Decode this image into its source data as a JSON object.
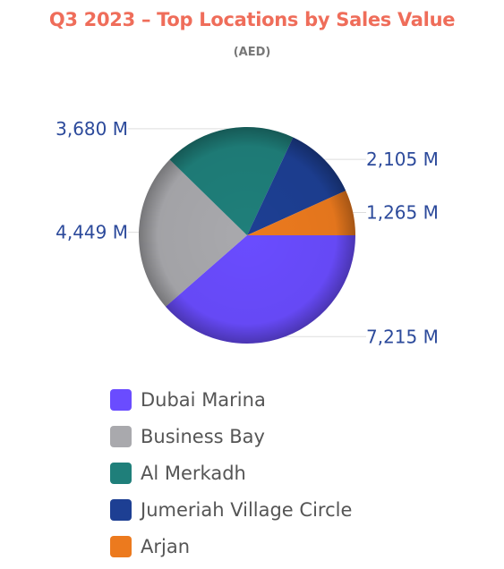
{
  "title": "Q3 2023 – Top Locations by Sales Value",
  "subtitle": "(AED)",
  "colors": {
    "title": "#ef6d5a",
    "label_text": "#2c4a9b",
    "leader_line": "#dddddd"
  },
  "chart_data": {
    "type": "pie",
    "start_angle_deg": 0,
    "direction": "clockwise",
    "legend_position": "bottom",
    "slices": [
      {
        "name": "Dubai Marina",
        "value": 7215,
        "label": "7,215 M",
        "color": "#6a4cff"
      },
      {
        "name": "Business Bay",
        "value": 4449,
        "label": "4,449 M",
        "color": "#a9a9ad"
      },
      {
        "name": "Al Merkadh",
        "value": 3680,
        "label": "3,680 M",
        "color": "#1f7f7a"
      },
      {
        "name": "Jumeriah Village Circle",
        "value": 2105,
        "label": "2,105 M",
        "color": "#1d3f93"
      },
      {
        "name": "Arjan",
        "value": 1265,
        "label": "1,265 M",
        "color": "#ec7a1e"
      }
    ]
  }
}
